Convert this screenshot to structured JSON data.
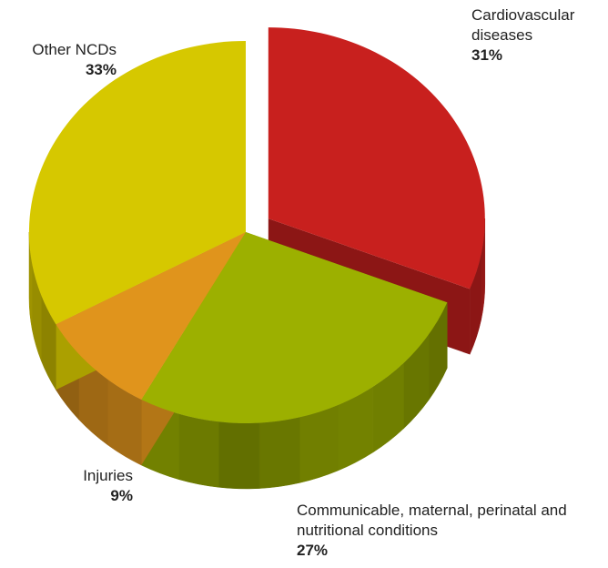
{
  "chart_data": {
    "type": "pie",
    "categories": [
      "Cardiovascular diseases",
      "Communicable, maternal, perinatal and nutritional conditions",
      "Injuries",
      "Other NCDs"
    ],
    "values": [
      31,
      27,
      9,
      33
    ],
    "value_labels": [
      "31%",
      "27%",
      "9%",
      "33%"
    ],
    "colors": [
      "#c8201e",
      "#9cb000",
      "#e0941c",
      "#d6c800"
    ],
    "explode": [
      true,
      false,
      false,
      false
    ]
  }
}
